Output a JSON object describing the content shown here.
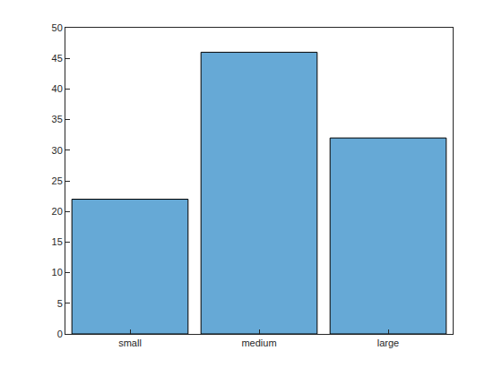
{
  "chart_data": {
    "type": "bar",
    "categories": [
      "small",
      "medium",
      "large"
    ],
    "values": [
      22,
      46,
      32
    ],
    "color": "#66a9d6",
    "ylim": [
      0,
      50
    ],
    "yticks": [
      0,
      5,
      10,
      15,
      20,
      25,
      30,
      35,
      40,
      45,
      50
    ],
    "grid": false
  }
}
